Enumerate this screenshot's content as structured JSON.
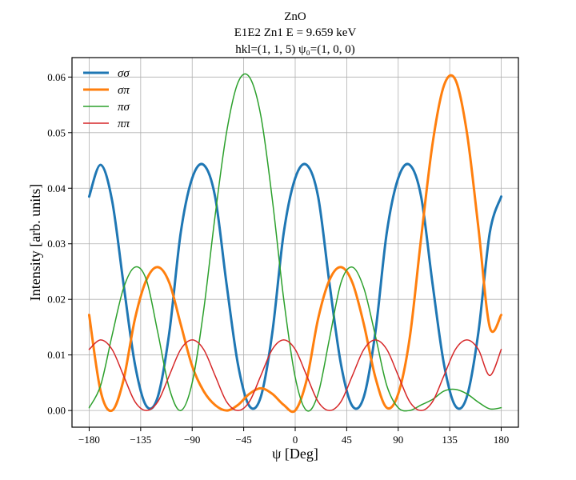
{
  "chart_data": {
    "type": "line",
    "title_lines": [
      "ZnO",
      "E1E2 Zn1 E = 9.659 keV",
      "hkl=(1, 1, 5)  ψ₀=(1, 0, 0)"
    ],
    "xlabel": "ψ [Deg]",
    "ylabel": "Intensity [arb. units]",
    "xlim": [
      -195,
      195
    ],
    "ylim": [
      -0.003,
      0.0635
    ],
    "xticks": [
      -180,
      -135,
      -90,
      -45,
      0,
      45,
      90,
      135,
      180
    ],
    "yticks": [
      0.0,
      0.01,
      0.02,
      0.03,
      0.04,
      0.05,
      0.06
    ],
    "xtick_labels": [
      "−180",
      "−135",
      "−90",
      "−45",
      "0",
      "45",
      "90",
      "135",
      "180"
    ],
    "ytick_labels": [
      "0.00",
      "0.01",
      "0.02",
      "0.03",
      "0.04",
      "0.05",
      "0.06"
    ],
    "grid": true,
    "legend_position": "top-left",
    "series": [
      {
        "name": "σσ",
        "color": "#1f77b4",
        "width": 3,
        "x": [
          -180,
          -170,
          -160,
          -150,
          -140,
          -130,
          -120,
          -110,
          -100,
          -90,
          -80,
          -70,
          -60,
          -50,
          -40,
          -30,
          -20,
          -10,
          0,
          10,
          20,
          30,
          40,
          50,
          60,
          70,
          80,
          90,
          100,
          110,
          120,
          130,
          140,
          150,
          160,
          170,
          180
        ],
        "y": [
          0.0385,
          0.0442,
          0.0378,
          0.0228,
          0.0083,
          0.0008,
          0.0025,
          0.014,
          0.032,
          0.0418,
          0.0442,
          0.0385,
          0.0228,
          0.0083,
          0.0008,
          0.0025,
          0.014,
          0.032,
          0.0418,
          0.0442,
          0.0385,
          0.0228,
          0.0083,
          0.0008,
          0.0025,
          0.014,
          0.032,
          0.0418,
          0.0442,
          0.0385,
          0.0228,
          0.0083,
          0.0008,
          0.0025,
          0.014,
          0.032,
          0.0385
        ]
      },
      {
        "name": "σπ",
        "color": "#ff7f0e",
        "width": 3,
        "x": [
          -180,
          -170,
          -160,
          -150,
          -140,
          -130,
          -120,
          -110,
          -100,
          -90,
          -80,
          -70,
          -60,
          -50,
          -40,
          -30,
          -20,
          -10,
          0,
          10,
          20,
          30,
          40,
          50,
          60,
          70,
          80,
          90,
          100,
          110,
          120,
          130,
          140,
          150,
          160,
          170,
          180
        ],
        "y": [
          0.0172,
          0.0035,
          0.0,
          0.0055,
          0.0165,
          0.0235,
          0.0258,
          0.023,
          0.0155,
          0.008,
          0.0035,
          0.001,
          0.0,
          0.001,
          0.003,
          0.004,
          0.003,
          0.001,
          0.0,
          0.0055,
          0.0165,
          0.0235,
          0.0258,
          0.023,
          0.0155,
          0.006,
          0.0005,
          0.003,
          0.013,
          0.031,
          0.048,
          0.0585,
          0.0595,
          0.05,
          0.033,
          0.015,
          0.0172
        ]
      },
      {
        "name": "πσ",
        "color": "#2ca02c",
        "width": 1.5,
        "x": [
          -180,
          -170,
          -160,
          -150,
          -140,
          -130,
          -120,
          -110,
          -100,
          -90,
          -80,
          -70,
          -60,
          -50,
          -40,
          -30,
          -20,
          -10,
          0,
          10,
          20,
          30,
          40,
          50,
          60,
          70,
          80,
          90,
          100,
          110,
          120,
          130,
          140,
          150,
          160,
          170,
          180
        ],
        "y": [
          0.0005,
          0.0045,
          0.0135,
          0.022,
          0.0258,
          0.0235,
          0.014,
          0.004,
          0.0,
          0.005,
          0.018,
          0.035,
          0.05,
          0.059,
          0.06,
          0.053,
          0.038,
          0.02,
          0.006,
          0.0,
          0.003,
          0.013,
          0.023,
          0.0258,
          0.022,
          0.0135,
          0.0045,
          0.0005,
          0.0,
          0.001,
          0.002,
          0.0035,
          0.0038,
          0.003,
          0.0015,
          0.0003,
          0.0005
        ]
      },
      {
        "name": "ππ",
        "color": "#d62728",
        "width": 1.5,
        "x": [
          -180,
          -170,
          -160,
          -150,
          -140,
          -130,
          -120,
          -110,
          -100,
          -90,
          -80,
          -70,
          -60,
          -50,
          -40,
          -30,
          -20,
          -10,
          0,
          10,
          20,
          30,
          40,
          50,
          60,
          70,
          80,
          90,
          100,
          110,
          120,
          130,
          140,
          150,
          160,
          170,
          180
        ],
        "y": [
          0.011,
          0.0127,
          0.011,
          0.0063,
          0.0016,
          0.0,
          0.0016,
          0.0063,
          0.011,
          0.0127,
          0.011,
          0.0063,
          0.0016,
          0.0,
          0.0016,
          0.0063,
          0.011,
          0.0127,
          0.011,
          0.0063,
          0.0016,
          0.0,
          0.0016,
          0.0063,
          0.011,
          0.0127,
          0.011,
          0.0063,
          0.0016,
          0.0,
          0.0016,
          0.0063,
          0.011,
          0.0127,
          0.011,
          0.0063,
          0.011
        ]
      }
    ]
  }
}
